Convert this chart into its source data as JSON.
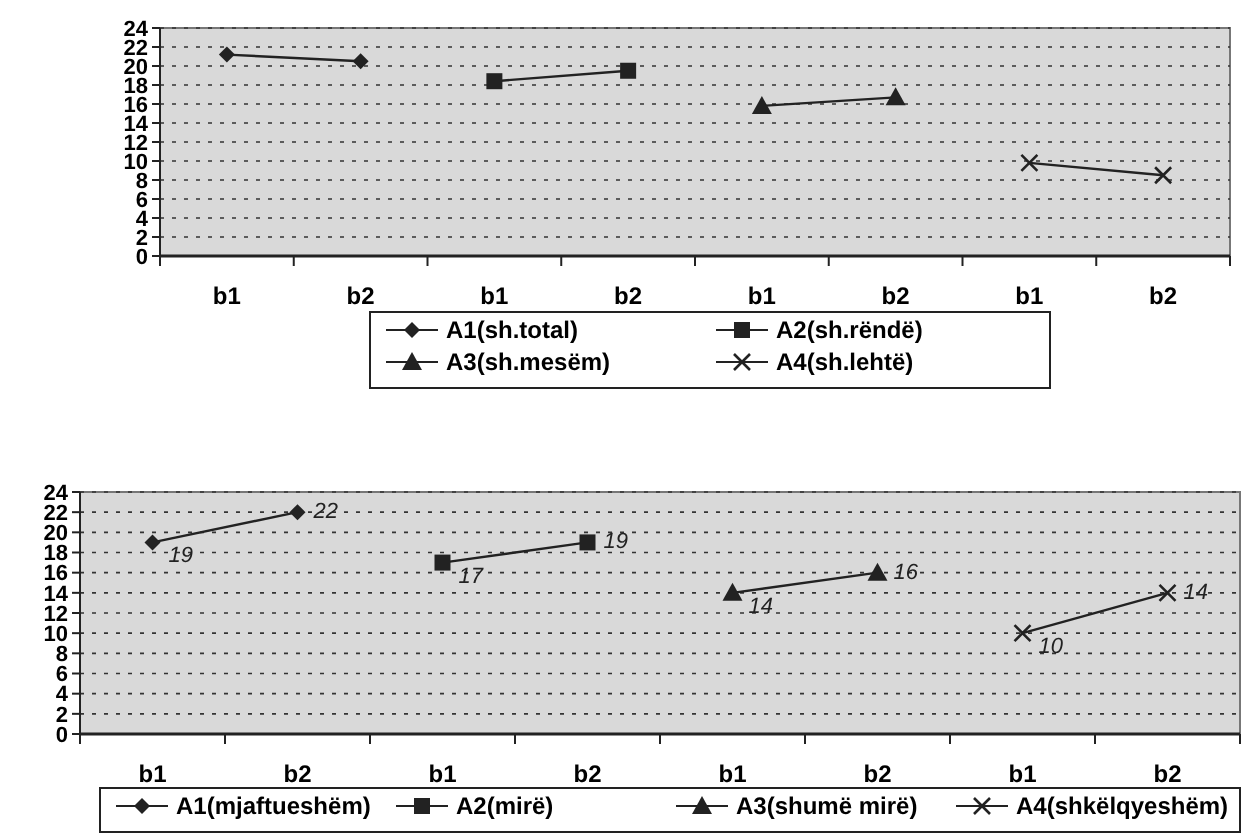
{
  "chart_data": [
    {
      "type": "line",
      "categories": [
        "b1",
        "b2",
        "b1",
        "b2",
        "b1",
        "b2",
        "b1",
        "b2"
      ],
      "ylim": [
        0,
        24
      ],
      "yticks": [
        0,
        2,
        4,
        6,
        8,
        10,
        12,
        14,
        16,
        18,
        20,
        22,
        24
      ],
      "grid": "y",
      "legend": "bottom",
      "series": [
        {
          "name": "A1(sh.total)",
          "color": "#222222",
          "marker": "diamond",
          "values": [
            21.2,
            20.5,
            null,
            null,
            null,
            null,
            null,
            null
          ]
        },
        {
          "name": "A2(sh.rëndë)",
          "color": "#222222",
          "marker": "square",
          "values": [
            null,
            null,
            18.4,
            19.5,
            null,
            null,
            null,
            null
          ]
        },
        {
          "name": "A3(sh.mesëm)",
          "color": "#222222",
          "marker": "triangle",
          "values": [
            null,
            null,
            null,
            null,
            15.8,
            16.7,
            null,
            null
          ]
        },
        {
          "name": "A4(sh.lehtë)",
          "color": "#222222",
          "marker": "cross",
          "values": [
            null,
            null,
            null,
            null,
            null,
            null,
            9.8,
            8.5
          ]
        }
      ]
    },
    {
      "type": "line",
      "categories": [
        "b1",
        "b2",
        "b1",
        "b2",
        "b1",
        "b2",
        "b1",
        "b2"
      ],
      "ylim": [
        0,
        24
      ],
      "yticks": [
        0,
        2,
        4,
        6,
        8,
        10,
        12,
        14,
        16,
        18,
        20,
        22,
        24
      ],
      "grid": "y",
      "legend": "bottom",
      "series": [
        {
          "name": "A1(mjaftueshëm)",
          "color": "#222222",
          "marker": "diamond",
          "values": [
            19,
            22,
            null,
            null,
            null,
            null,
            null,
            null
          ],
          "value_labels": [
            "19",
            "22",
            null,
            null,
            null,
            null,
            null,
            null
          ]
        },
        {
          "name": "A2(mirë)",
          "color": "#222222",
          "marker": "square",
          "values": [
            null,
            null,
            17,
            19,
            null,
            null,
            null,
            null
          ],
          "value_labels": [
            null,
            null,
            "17",
            "19",
            null,
            null,
            null,
            null
          ]
        },
        {
          "name": "A3(shumë mirë)",
          "color": "#222222",
          "marker": "triangle",
          "values": [
            null,
            null,
            null,
            null,
            14,
            16,
            null,
            null
          ],
          "value_labels": [
            null,
            null,
            null,
            null,
            "14",
            "16",
            null,
            null
          ]
        },
        {
          "name": "A4(shkëlqyeshëm)",
          "color": "#222222",
          "marker": "cross",
          "values": [
            null,
            null,
            null,
            null,
            null,
            null,
            10,
            14
          ],
          "value_labels": [
            null,
            null,
            null,
            null,
            null,
            null,
            "10",
            "14"
          ]
        }
      ]
    }
  ]
}
